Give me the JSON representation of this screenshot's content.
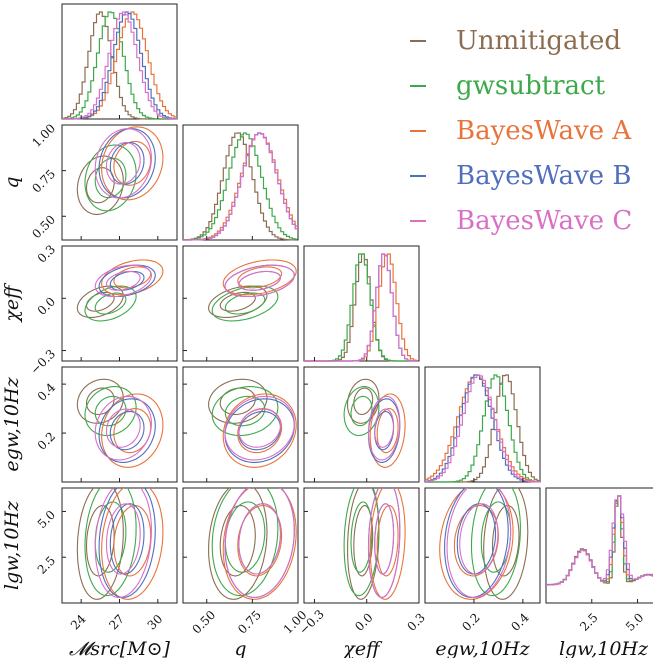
{
  "chart_data": {
    "type": "corner",
    "parameters": [
      {
        "key": "mchirp",
        "label": "𝓜src[M⊙]",
        "range": [
          22.5,
          31.5
        ],
        "ticks": [
          24,
          27,
          30
        ],
        "tick_labels": [
          "24",
          "27",
          "30"
        ]
      },
      {
        "key": "q",
        "label": "q",
        "range": [
          0.37,
          1.0
        ],
        "ticks": [
          0.5,
          0.75,
          1.0
        ],
        "tick_labels": [
          "0.50",
          "0.75",
          "1.00"
        ]
      },
      {
        "key": "chi_eff",
        "label": "χeff",
        "range": [
          -0.36,
          0.3
        ],
        "ticks": [
          -0.3,
          0.0,
          0.3
        ],
        "tick_labels": [
          "−0.3",
          "0.0",
          "0.3"
        ]
      },
      {
        "key": "ecc",
        "label": "egw,10Hz",
        "range": [
          0.0,
          0.47
        ],
        "ticks": [
          0.2,
          0.4
        ],
        "tick_labels": [
          "0.2",
          "0.4"
        ]
      },
      {
        "key": "lgw",
        "label": "lgw,10Hz",
        "range": [
          0.0,
          6.28
        ],
        "ticks": [
          2.5,
          5.0
        ],
        "tick_labels": [
          "2.5",
          "5.0"
        ]
      }
    ],
    "series": [
      {
        "name": "Unmitigated",
        "color": "#8c6d52",
        "means": [
          25.5,
          0.67,
          -0.02,
          0.33,
          3.4
        ],
        "sds": [
          0.9,
          0.08,
          0.045,
          0.045,
          1.6
        ],
        "corr_chi_q": 0.4
      },
      {
        "name": "gwsubtract",
        "color": "#3caa4a",
        "means": [
          26.3,
          0.71,
          -0.03,
          0.29,
          3.6
        ],
        "sds": [
          1.0,
          0.09,
          0.05,
          0.05,
          1.6
        ],
        "corr_chi_q": 0.4
      },
      {
        "name": "BayesWave A",
        "color": "#e8743c",
        "means": [
          28.0,
          0.79,
          0.12,
          0.21,
          3.4
        ],
        "sds": [
          1.2,
          0.1,
          0.05,
          0.075,
          1.6
        ],
        "corr_chi_q": 0.35
      },
      {
        "name": "BayesWave B",
        "color": "#4f6fbd",
        "means": [
          27.6,
          0.79,
          0.1,
          0.21,
          3.5
        ],
        "sds": [
          1.1,
          0.095,
          0.045,
          0.065,
          1.6
        ],
        "corr_chi_q": 0.35
      },
      {
        "name": "BayesWave C",
        "color": "#d870c8",
        "means": [
          27.3,
          0.79,
          0.1,
          0.22,
          3.5
        ],
        "sds": [
          1.1,
          0.095,
          0.045,
          0.065,
          1.6
        ],
        "corr_chi_q": 0.35
      }
    ],
    "legend_position": "top-right",
    "grid": false
  }
}
